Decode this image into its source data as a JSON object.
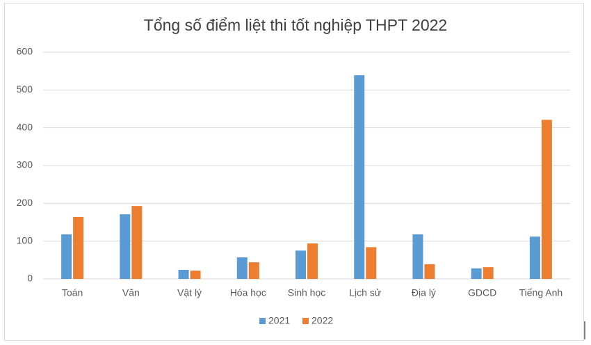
{
  "chart_data": {
    "type": "bar",
    "title": "Tổng số điểm liệt thi tốt nghiệp THPT 2022",
    "categories": [
      "Toán",
      "Văn",
      "Vật lý",
      "Hóa học",
      "Sinh học",
      "Lịch sử",
      "Địa lý",
      "GDCD",
      "Tiếng Anh"
    ],
    "series": [
      {
        "name": "2021",
        "color": "#5b9bd5",
        "values": [
          118,
          171,
          24,
          57,
          75,
          539,
          118,
          28,
          112
        ]
      },
      {
        "name": "2022",
        "color": "#ed7d31",
        "values": [
          164,
          193,
          22,
          44,
          94,
          84,
          39,
          31,
          421
        ]
      }
    ],
    "ylim": [
      0,
      600
    ],
    "yticks": [
      0,
      100,
      200,
      300,
      400,
      500,
      600
    ],
    "grid": true,
    "legend": "bottom"
  }
}
